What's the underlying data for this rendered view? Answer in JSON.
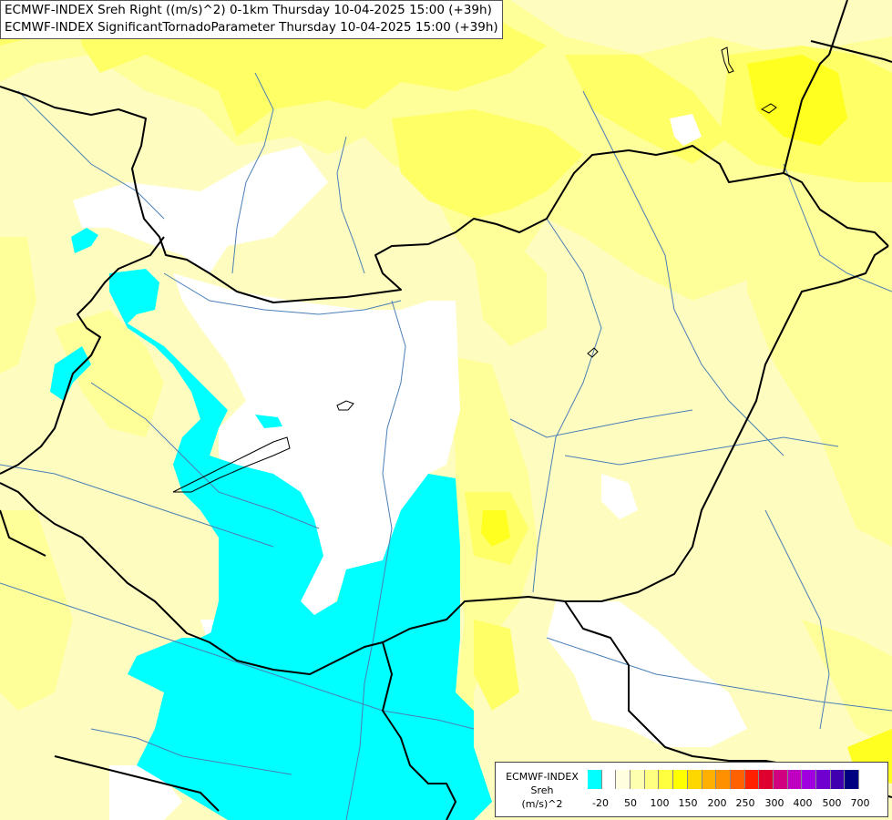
{
  "titles": {
    "line1": "ECMWF-INDEX Sreh Right ((m/s)^2) 0-1km Thursday 10-04-2025 15:00 (+39h)",
    "line2": "ECMWF-INDEX SignificantTornadoParameter Thursday 10-04-2025 15:00 (+39h)"
  },
  "legend": {
    "line1": "ECMWF-INDEX",
    "line2": "Sreh",
    "line3": "(m/s)^2",
    "colors": [
      "#00ffff",
      "#ffffff",
      "#ffffe0",
      "#ffffb0",
      "#ffff80",
      "#ffff40",
      "#ffff00",
      "#ffd700",
      "#ffb000",
      "#ff9000",
      "#ff6000",
      "#ff2000",
      "#e00030",
      "#d00080",
      "#c000c0",
      "#a000e0",
      "#7000d0",
      "#4000b0",
      "#000080"
    ],
    "ticks": [
      "-20",
      "50",
      "100",
      "150",
      "200",
      "250",
      "300",
      "400",
      "500",
      "700"
    ]
  },
  "colors": {
    "cyan": "#00ffff",
    "white": "#ffffff",
    "pale_yellow": "#fffcc0",
    "light_yellow": "#ffff9a",
    "yellow": "#ffff66",
    "strong_yellow": "#ffff20",
    "border": "#000000",
    "river": "#4a7fb5"
  }
}
